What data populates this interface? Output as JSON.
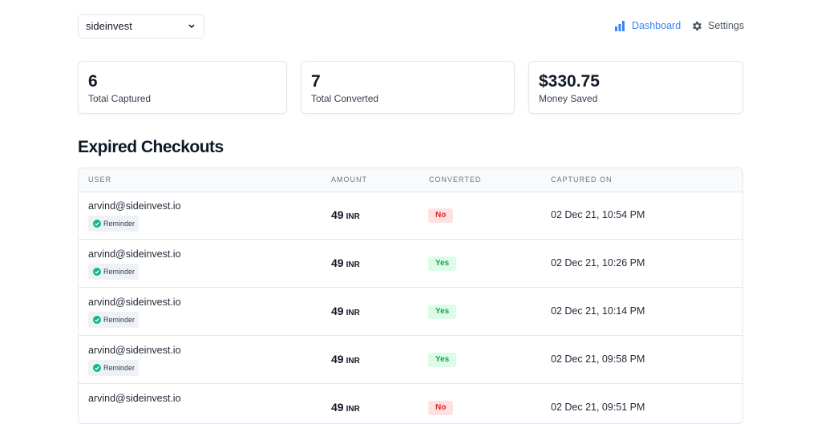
{
  "selector": {
    "value": "sideinvest"
  },
  "nav": [
    {
      "label": "Dashboard",
      "color": "#3b82f6"
    },
    {
      "label": "Settings",
      "color": "#4b5563"
    }
  ],
  "stats": [
    {
      "value": 6,
      "label": "Total Captured"
    },
    {
      "value": 7,
      "label": "Total Converted"
    },
    {
      "value": "$330.75",
      "label": "Money Saved"
    }
  ],
  "section": {
    "title": "Expired Checkouts"
  },
  "table": {
    "headers": [
      "USER",
      "AMOUNT",
      "CONVERTED",
      "CAPTURED ON"
    ],
    "rows": [
      {
        "user": "arvind@sideinvest.io",
        "tag": "Reminder",
        "amount": 49,
        "currency": "INR",
        "converted": {
          "label": "No",
          "color": "#dc2626",
          "background": "#fee2e2"
        },
        "captured_on": "02 Dec 21, 10:54 PM"
      },
      {
        "user": "arvind@sideinvest.io",
        "tag": "Reminder",
        "amount": 49,
        "currency": "INR",
        "converted": {
          "label": "Yes",
          "color": "#16a34a",
          "background": "#dcfce7"
        },
        "captured_on": "02 Dec 21, 10:26 PM"
      },
      {
        "user": "arvind@sideinvest.io",
        "tag": "Reminder",
        "amount": 49,
        "currency": "INR",
        "converted": {
          "label": "Yes",
          "color": "#16a34a",
          "background": "#dcfce7"
        },
        "captured_on": "02 Dec 21, 10:14 PM"
      },
      {
        "user": "arvind@sideinvest.io",
        "tag": "Reminder",
        "amount": 49,
        "currency": "INR",
        "converted": {
          "label": "Yes",
          "color": "#16a34a",
          "background": "#dcfce7"
        },
        "captured_on": "02 Dec 21, 09:58 PM"
      },
      {
        "user": "arvind@sideinvest.io",
        "amount": 49,
        "currency": "INR",
        "converted": {
          "label": "No",
          "color": "#dc2626",
          "background": "#fee2e2"
        },
        "captured_on": "02 Dec 21, 09:51 PM"
      }
    ]
  }
}
